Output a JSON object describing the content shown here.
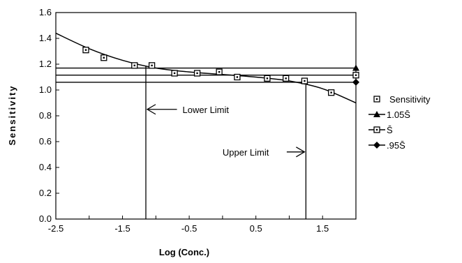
{
  "chart_data": {
    "type": "scatter",
    "title": "",
    "xlabel": "Log (Conc.)",
    "ylabel": "Sensitivity",
    "xlim": [
      -2.5,
      2.0
    ],
    "ylim": [
      0.0,
      1.6
    ],
    "xticks": [
      -2.5,
      -2.0,
      -1.5,
      -1.0,
      -0.5,
      0.0,
      0.5,
      1.0,
      1.5,
      2.0
    ],
    "xtick_labels": [
      "-2.5",
      "",
      "-1.5",
      "",
      "-0.5",
      "",
      "0.5",
      "",
      "1.5",
      ""
    ],
    "yticks": [
      0.0,
      0.2,
      0.4,
      0.6,
      0.8,
      1.0,
      1.2,
      1.4,
      1.6
    ],
    "ytick_labels": [
      "0.0",
      "0.2",
      "0.4",
      "0.6",
      "0.8",
      "1.0",
      "1.2",
      "1.4",
      "1.6"
    ],
    "grid": false,
    "legend_position": "right",
    "series": [
      {
        "name": "Sensitivity",
        "marker": "open-square",
        "x": [
          -2.05,
          -1.78,
          -1.32,
          -1.06,
          -0.72,
          -0.38,
          -0.05,
          0.22,
          0.67,
          0.95,
          1.23,
          1.63
        ],
        "y": [
          1.31,
          1.25,
          1.19,
          1.19,
          1.13,
          1.13,
          1.14,
          1.1,
          1.09,
          1.09,
          1.07,
          0.98
        ]
      },
      {
        "name": "1.05S̄",
        "marker": "filled-triangle",
        "y": 1.17
      },
      {
        "name": "S̄",
        "marker": "open-square",
        "y": 1.115
      },
      {
        "name": ".95S̄",
        "marker": "filled-diamond",
        "y": 1.06
      }
    ],
    "fit_curve": {
      "x": [
        -2.5,
        -2.0,
        -1.5,
        -1.0,
        -0.5,
        0.0,
        0.5,
        1.0,
        1.5,
        2.0
      ],
      "y": [
        1.44,
        1.32,
        1.23,
        1.17,
        1.14,
        1.12,
        1.1,
        1.07,
        1.01,
        0.9
      ]
    },
    "limits": [
      {
        "label": "Lower Limit",
        "x": -1.15
      },
      {
        "label": "Upper Limit",
        "x": 1.25
      }
    ],
    "annotations": [
      {
        "text": "Lower Limit",
        "x": -0.6,
        "y": 0.85
      },
      {
        "text": "Upper Limit",
        "x": 0.0,
        "y": 0.52
      }
    ]
  }
}
